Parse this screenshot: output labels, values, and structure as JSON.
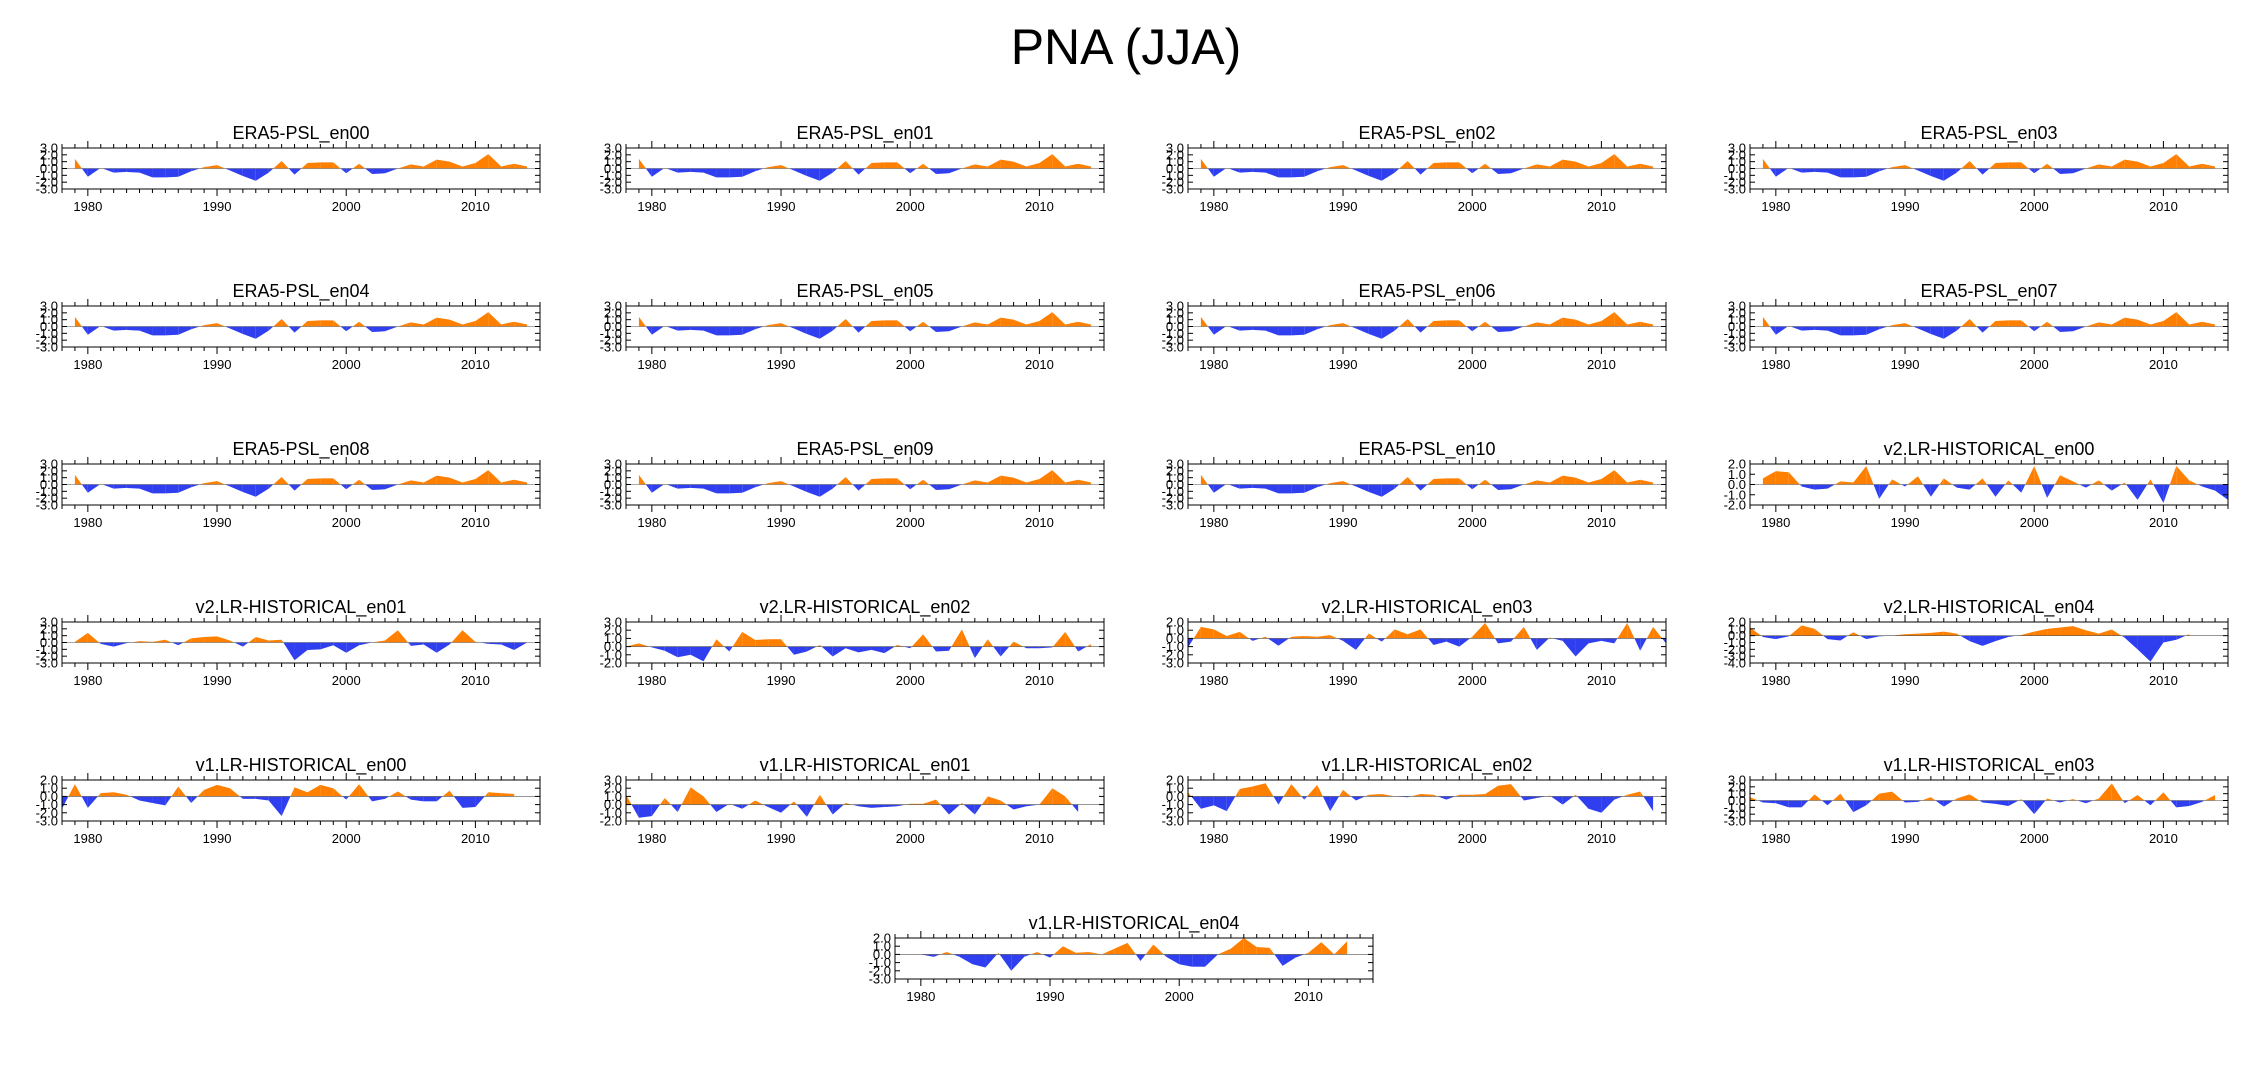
{
  "figure_title": "PNA (JJA)",
  "colors": {
    "positive": "#ff8000",
    "negative": "#2f3ff0",
    "axis": "#000000"
  },
  "chart_data": [
    {
      "type": "area",
      "title": "ERA5-PSL_en00",
      "xlim": [
        1978,
        2015
      ],
      "ylim": [
        -3,
        3
      ],
      "yticks": [
        "3.0",
        "2.0",
        "1.0",
        "0.0",
        "-1.0",
        "-2.0",
        "-3.0"
      ],
      "xticks": [
        1980,
        1990,
        2000,
        2010
      ],
      "x_start": 1979,
      "values": [
        1.4,
        -1.2,
        0.1,
        -0.6,
        -0.5,
        -0.6,
        -1.3,
        -1.3,
        -1.2,
        -0.4,
        0.2,
        0.5,
        -0.3,
        -1.1,
        -1.8,
        -0.6,
        1.1,
        -0.9,
        0.8,
        0.9,
        0.9,
        -0.7,
        0.7,
        -0.8,
        -0.7,
        0.0,
        0.6,
        0.3,
        1.3,
        1.0,
        0.3,
        0.8,
        2.1,
        0.3,
        0.7,
        0.3
      ]
    },
    {
      "type": "area",
      "title": "ERA5-PSL_en01",
      "xlim": [
        1978,
        2015
      ],
      "ylim": [
        -3,
        3
      ],
      "yticks": [
        "3.0",
        "2.0",
        "1.0",
        "0.0",
        "-1.0",
        "-2.0",
        "-3.0"
      ],
      "xticks": [
        1980,
        1990,
        2000,
        2010
      ],
      "x_start": 1979,
      "values": [
        1.4,
        -1.2,
        0.1,
        -0.6,
        -0.5,
        -0.6,
        -1.3,
        -1.3,
        -1.2,
        -0.4,
        0.2,
        0.5,
        -0.3,
        -1.1,
        -1.8,
        -0.6,
        1.1,
        -0.9,
        0.8,
        0.9,
        0.9,
        -0.7,
        0.7,
        -0.8,
        -0.7,
        0.0,
        0.6,
        0.3,
        1.3,
        1.0,
        0.3,
        0.8,
        2.1,
        0.3,
        0.7,
        0.3
      ]
    },
    {
      "type": "area",
      "title": "ERA5-PSL_en02",
      "xlim": [
        1978,
        2015
      ],
      "ylim": [
        -3,
        3
      ],
      "yticks": [
        "3.0",
        "2.0",
        "1.0",
        "0.0",
        "-1.0",
        "-2.0",
        "-3.0"
      ],
      "xticks": [
        1980,
        1990,
        2000,
        2010
      ],
      "x_start": 1979,
      "values": [
        1.4,
        -1.2,
        0.1,
        -0.6,
        -0.5,
        -0.6,
        -1.3,
        -1.3,
        -1.2,
        -0.4,
        0.2,
        0.5,
        -0.3,
        -1.1,
        -1.8,
        -0.6,
        1.1,
        -0.9,
        0.8,
        0.9,
        0.9,
        -0.7,
        0.7,
        -0.8,
        -0.7,
        0.0,
        0.6,
        0.3,
        1.3,
        1.0,
        0.3,
        0.8,
        2.1,
        0.3,
        0.7,
        0.3
      ]
    },
    {
      "type": "area",
      "title": "ERA5-PSL_en03",
      "xlim": [
        1978,
        2015
      ],
      "ylim": [
        -3,
        3
      ],
      "yticks": [
        "3.0",
        "2.0",
        "1.0",
        "0.0",
        "-1.0",
        "-2.0",
        "-3.0"
      ],
      "xticks": [
        1980,
        1990,
        2000,
        2010
      ],
      "x_start": 1979,
      "values": [
        1.4,
        -1.2,
        0.1,
        -0.6,
        -0.5,
        -0.6,
        -1.3,
        -1.3,
        -1.2,
        -0.4,
        0.2,
        0.5,
        -0.3,
        -1.1,
        -1.8,
        -0.6,
        1.1,
        -0.9,
        0.8,
        0.9,
        0.9,
        -0.7,
        0.7,
        -0.8,
        -0.7,
        0.0,
        0.6,
        0.3,
        1.3,
        1.0,
        0.3,
        0.8,
        2.1,
        0.3,
        0.7,
        0.3
      ]
    },
    {
      "type": "area",
      "title": "ERA5-PSL_en04",
      "xlim": [
        1978,
        2015
      ],
      "ylim": [
        -3,
        3
      ],
      "yticks": [
        "3.0",
        "2.0",
        "1.0",
        "0.0",
        "-1.0",
        "-2.0",
        "-3.0"
      ],
      "xticks": [
        1980,
        1990,
        2000,
        2010
      ],
      "x_start": 1979,
      "values": [
        1.4,
        -1.2,
        0.1,
        -0.6,
        -0.5,
        -0.6,
        -1.3,
        -1.3,
        -1.2,
        -0.4,
        0.2,
        0.5,
        -0.3,
        -1.1,
        -1.8,
        -0.6,
        1.1,
        -0.9,
        0.8,
        0.9,
        0.9,
        -0.7,
        0.7,
        -0.8,
        -0.7,
        0.0,
        0.6,
        0.3,
        1.3,
        1.0,
        0.3,
        0.8,
        2.1,
        0.3,
        0.7,
        0.3
      ]
    },
    {
      "type": "area",
      "title": "ERA5-PSL_en05",
      "xlim": [
        1978,
        2015
      ],
      "ylim": [
        -3,
        3
      ],
      "yticks": [
        "3.0",
        "2.0",
        "1.0",
        "0.0",
        "-1.0",
        "-2.0",
        "-3.0"
      ],
      "xticks": [
        1980,
        1990,
        2000,
        2010
      ],
      "x_start": 1979,
      "values": [
        1.4,
        -1.2,
        0.1,
        -0.6,
        -0.5,
        -0.6,
        -1.3,
        -1.3,
        -1.2,
        -0.4,
        0.2,
        0.5,
        -0.3,
        -1.1,
        -1.8,
        -0.6,
        1.1,
        -0.9,
        0.8,
        0.9,
        0.9,
        -0.7,
        0.7,
        -0.8,
        -0.7,
        0.0,
        0.6,
        0.3,
        1.3,
        1.0,
        0.3,
        0.8,
        2.1,
        0.3,
        0.7,
        0.3
      ]
    },
    {
      "type": "area",
      "title": "ERA5-PSL_en06",
      "xlim": [
        1978,
        2015
      ],
      "ylim": [
        -3,
        3
      ],
      "yticks": [
        "3.0",
        "2.0",
        "1.0",
        "0.0",
        "-1.0",
        "-2.0",
        "-3.0"
      ],
      "xticks": [
        1980,
        1990,
        2000,
        2010
      ],
      "x_start": 1979,
      "values": [
        1.4,
        -1.2,
        0.1,
        -0.6,
        -0.5,
        -0.6,
        -1.3,
        -1.3,
        -1.2,
        -0.4,
        0.2,
        0.5,
        -0.3,
        -1.1,
        -1.8,
        -0.6,
        1.1,
        -0.9,
        0.8,
        0.9,
        0.9,
        -0.7,
        0.7,
        -0.8,
        -0.7,
        0.0,
        0.6,
        0.3,
        1.3,
        1.0,
        0.3,
        0.8,
        2.1,
        0.3,
        0.7,
        0.3
      ]
    },
    {
      "type": "area",
      "title": "ERA5-PSL_en07",
      "xlim": [
        1978,
        2015
      ],
      "ylim": [
        -3,
        3
      ],
      "yticks": [
        "3.0",
        "2.0",
        "1.0",
        "0.0",
        "-1.0",
        "-2.0",
        "-3.0"
      ],
      "xticks": [
        1980,
        1990,
        2000,
        2010
      ],
      "x_start": 1979,
      "values": [
        1.4,
        -1.2,
        0.1,
        -0.6,
        -0.5,
        -0.6,
        -1.3,
        -1.3,
        -1.2,
        -0.4,
        0.2,
        0.5,
        -0.3,
        -1.1,
        -1.8,
        -0.6,
        1.1,
        -0.9,
        0.8,
        0.9,
        0.9,
        -0.7,
        0.7,
        -0.8,
        -0.7,
        0.0,
        0.6,
        0.3,
        1.3,
        1.0,
        0.3,
        0.8,
        2.1,
        0.3,
        0.7,
        0.3
      ]
    },
    {
      "type": "area",
      "title": "ERA5-PSL_en08",
      "xlim": [
        1978,
        2015
      ],
      "ylim": [
        -3,
        3
      ],
      "yticks": [
        "3.0",
        "2.0",
        "1.0",
        "0.0",
        "-1.0",
        "-2.0",
        "-3.0"
      ],
      "xticks": [
        1980,
        1990,
        2000,
        2010
      ],
      "x_start": 1979,
      "values": [
        1.4,
        -1.2,
        0.1,
        -0.6,
        -0.5,
        -0.6,
        -1.3,
        -1.3,
        -1.2,
        -0.4,
        0.2,
        0.5,
        -0.3,
        -1.1,
        -1.8,
        -0.6,
        1.1,
        -0.9,
        0.8,
        0.9,
        0.9,
        -0.7,
        0.7,
        -0.8,
        -0.7,
        0.0,
        0.6,
        0.3,
        1.3,
        1.0,
        0.3,
        0.8,
        2.1,
        0.3,
        0.7,
        0.3
      ]
    },
    {
      "type": "area",
      "title": "ERA5-PSL_en09",
      "xlim": [
        1978,
        2015
      ],
      "ylim": [
        -3,
        3
      ],
      "yticks": [
        "3.0",
        "2.0",
        "1.0",
        "0.0",
        "-1.0",
        "-2.0",
        "-3.0"
      ],
      "xticks": [
        1980,
        1990,
        2000,
        2010
      ],
      "x_start": 1979,
      "values": [
        1.4,
        -1.2,
        0.1,
        -0.6,
        -0.5,
        -0.6,
        -1.3,
        -1.3,
        -1.2,
        -0.4,
        0.2,
        0.5,
        -0.3,
        -1.1,
        -1.8,
        -0.6,
        1.1,
        -0.9,
        0.8,
        0.9,
        0.9,
        -0.7,
        0.7,
        -0.8,
        -0.7,
        0.0,
        0.6,
        0.3,
        1.3,
        1.0,
        0.3,
        0.8,
        2.1,
        0.3,
        0.7,
        0.3
      ]
    },
    {
      "type": "area",
      "title": "ERA5-PSL_en10",
      "xlim": [
        1978,
        2015
      ],
      "ylim": [
        -3,
        3
      ],
      "yticks": [
        "3.0",
        "2.0",
        "1.0",
        "0.0",
        "-1.0",
        "-2.0",
        "-3.0"
      ],
      "xticks": [
        1980,
        1990,
        2000,
        2010
      ],
      "x_start": 1979,
      "values": [
        1.4,
        -1.2,
        0.1,
        -0.6,
        -0.5,
        -0.6,
        -1.3,
        -1.3,
        -1.2,
        -0.4,
        0.2,
        0.5,
        -0.3,
        -1.1,
        -1.8,
        -0.6,
        1.1,
        -0.9,
        0.8,
        0.9,
        0.9,
        -0.7,
        0.7,
        -0.8,
        -0.7,
        0.0,
        0.6,
        0.3,
        1.3,
        1.0,
        0.3,
        0.8,
        2.1,
        0.3,
        0.7,
        0.3
      ]
    },
    {
      "type": "area",
      "title": "v2.LR-HISTORICAL_en00",
      "xlim": [
        1978,
        2015
      ],
      "ylim": [
        -2,
        2
      ],
      "yticks": [
        "2.0",
        "1.0",
        "0.0",
        "-1.0",
        "-2.0"
      ],
      "xticks": [
        1980,
        1990,
        2000,
        2010
      ],
      "x_start": 1979,
      "values": [
        0.6,
        1.3,
        1.2,
        -0.2,
        -0.5,
        -0.4,
        0.3,
        0.2,
        1.8,
        -1.4,
        0.5,
        -0.2,
        0.8,
        -1.2,
        0.6,
        -0.3,
        -0.5,
        0.6,
        -1.2,
        0.4,
        -0.8,
        1.8,
        -1.3,
        0.9,
        0.3,
        -0.3,
        0.4,
        -0.6,
        0.2,
        -1.5,
        0.5,
        -1.8,
        1.8,
        0.4,
        -0.2,
        -0.6,
        -1.5
      ]
    },
    {
      "type": "area",
      "title": "v2.LR-HISTORICAL_en01",
      "xlim": [
        1978,
        2015
      ],
      "ylim": [
        -3,
        3
      ],
      "yticks": [
        "3.0",
        "2.0",
        "1.0",
        "0.0",
        "-1.0",
        "-2.0",
        "-3.0"
      ],
      "xticks": [
        1980,
        1990,
        2000,
        2010
      ],
      "x_start": 1979,
      "values": [
        0.1,
        1.4,
        -0.2,
        -0.6,
        -0.1,
        0.2,
        0.1,
        0.4,
        -0.4,
        0.6,
        0.8,
        0.9,
        0.3,
        -0.6,
        0.8,
        0.3,
        0.4,
        -2.6,
        -1.1,
        -1.0,
        -0.4,
        -1.5,
        -0.4,
        0.0,
        0.3,
        1.8,
        -0.5,
        -0.3,
        -1.5,
        -0.3,
        1.8,
        0.1,
        -0.2,
        -0.3,
        -1.1,
        0.0
      ]
    },
    {
      "type": "area",
      "title": "v2.LR-HISTORICAL_en02",
      "xlim": [
        1978,
        2015
      ],
      "ylim": [
        -2,
        3
      ],
      "yticks": [
        "3.0",
        "2.0",
        "1.0",
        "0.0",
        "-1.0",
        "-2.0"
      ],
      "xticks": [
        1980,
        1990,
        2000,
        2010
      ],
      "x_start": 1978,
      "values": [
        0.0,
        0.4,
        -0.1,
        -0.5,
        -1.3,
        -1.0,
        -1.8,
        0.9,
        -0.6,
        1.8,
        0.8,
        0.9,
        0.9,
        -1.0,
        -0.6,
        0.2,
        -1.2,
        -0.2,
        -0.7,
        -0.4,
        -0.8,
        0.2,
        -0.2,
        1.5,
        -0.6,
        -0.5,
        2.1,
        -1.4,
        0.9,
        -1.2,
        0.6,
        -0.2,
        -0.2,
        -0.1,
        1.8,
        -0.6,
        0.3
      ]
    },
    {
      "type": "area",
      "title": "v2.LR-HISTORICAL_en03",
      "xlim": [
        1978,
        2015
      ],
      "ylim": [
        -3,
        2
      ],
      "yticks": [
        "2.0",
        "1.0",
        "0.0",
        "-1.0",
        "-2.0",
        "-3.0"
      ],
      "xticks": [
        1980,
        1990,
        2000,
        2010
      ],
      "x_start": 1978,
      "values": [
        -1.1,
        1.4,
        1.1,
        0.3,
        0.8,
        -0.3,
        0.2,
        -0.9,
        0.2,
        0.3,
        0.2,
        0.4,
        -0.3,
        -1.4,
        0.6,
        -0.4,
        1.1,
        0.5,
        1.1,
        -0.8,
        -0.4,
        -1.0,
        0.2,
        1.9,
        -0.6,
        -0.4,
        1.4,
        -1.4,
        0.1,
        -0.3,
        -2.2,
        -0.6,
        -0.3,
        -0.6,
        1.9,
        -1.5,
        1.4,
        -0.6
      ]
    },
    {
      "type": "area",
      "title": "v2.LR-HISTORICAL_en04",
      "xlim": [
        1978,
        2015
      ],
      "ylim": [
        -4,
        2
      ],
      "yticks": [
        "2.0",
        "1.0",
        "0.0",
        "-1.0",
        "-2.0",
        "-3.0",
        "-4.0"
      ],
      "xticks": [
        1980,
        1990,
        2000,
        2010
      ],
      "x_start": 1978,
      "values": [
        1.2,
        -0.2,
        -0.5,
        -0.1,
        1.5,
        1.0,
        -0.5,
        -0.7,
        0.5,
        -0.5,
        -0.1,
        0.0,
        0.2,
        0.3,
        0.4,
        0.6,
        0.3,
        -0.8,
        -1.5,
        -0.8,
        -0.2,
        0.1,
        0.6,
        1.0,
        1.2,
        1.4,
        0.8,
        0.3,
        0.9,
        -0.3,
        -2.0,
        -3.8,
        -1.0,
        -0.6,
        0.2
      ]
    },
    {
      "type": "area",
      "title": "v1.LR-HISTORICAL_en00",
      "xlim": [
        1978,
        2015
      ],
      "ylim": [
        -3,
        2
      ],
      "yticks": [
        "2.0",
        "1.0",
        "0.0",
        "-1.0",
        "-2.0",
        "-3.0"
      ],
      "xticks": [
        1980,
        1990,
        2000,
        2010
      ],
      "x_start": 1978,
      "values": [
        -1.5,
        1.5,
        -1.4,
        0.4,
        0.5,
        0.2,
        -0.5,
        -0.8,
        -1.1,
        1.2,
        -0.8,
        0.8,
        1.4,
        1.0,
        -0.3,
        -0.3,
        -0.5,
        -2.4,
        1.1,
        0.5,
        1.4,
        1.0,
        -0.4,
        1.5,
        -0.6,
        -0.3,
        0.6,
        -0.4,
        -0.6,
        -0.6,
        0.7,
        -1.4,
        -1.3,
        0.5,
        0.4,
        0.3
      ]
    },
    {
      "type": "area",
      "title": "v1.LR-HISTORICAL_en01",
      "xlim": [
        1978,
        2015
      ],
      "ylim": [
        -2,
        3
      ],
      "yticks": [
        "3.0",
        "2.0",
        "1.0",
        "0.0",
        "-1.0",
        "-2.0"
      ],
      "xticks": [
        1980,
        1990,
        2000,
        2010
      ],
      "x_start": 1978,
      "values": [
        1.2,
        -1.6,
        -1.4,
        0.8,
        -0.9,
        2.1,
        1.0,
        -0.9,
        0.1,
        -0.5,
        0.5,
        -0.3,
        -1.0,
        0.4,
        -1.5,
        1.2,
        -1.2,
        0.2,
        -0.2,
        -0.4,
        -0.3,
        -0.2,
        0.1,
        0.1,
        0.6,
        -1.2,
        0.2,
        -1.2,
        1.0,
        0.5,
        -0.6,
        -0.2,
        0.0,
        2.0,
        1.0,
        -0.9
      ]
    },
    {
      "type": "area",
      "title": "v1.LR-HISTORICAL_en02",
      "xlim": [
        1978,
        2015
      ],
      "ylim": [
        -3,
        2
      ],
      "yticks": [
        "2.0",
        "1.0",
        "0.0",
        "-1.0",
        "-2.0",
        "-3.0"
      ],
      "xticks": [
        1980,
        1990,
        2000,
        2010
      ],
      "x_start": 1978,
      "values": [
        0.5,
        -1.5,
        -1.1,
        -1.8,
        0.9,
        1.2,
        1.6,
        -1.0,
        1.5,
        -0.4,
        1.4,
        -1.8,
        0.8,
        -0.5,
        0.2,
        0.3,
        0.0,
        -0.1,
        0.3,
        0.2,
        -0.4,
        0.2,
        0.2,
        0.3,
        1.3,
        1.5,
        -0.5,
        -0.2,
        0.1,
        -1.0,
        0.2,
        -1.5,
        -2.0,
        -0.4,
        0.2,
        0.6,
        -1.8
      ]
    },
    {
      "type": "area",
      "title": "v1.LR-HISTORICAL_en03",
      "xlim": [
        1978,
        2015
      ],
      "ylim": [
        -3,
        3
      ],
      "yticks": [
        "3.0",
        "2.0",
        "1.0",
        "0.0",
        "-1.0",
        "-2.0",
        "-3.0"
      ],
      "xticks": [
        1980,
        1990,
        2000,
        2010
      ],
      "x_start": 1978,
      "values": [
        0.5,
        -0.3,
        -0.4,
        -1.0,
        -1.0,
        0.9,
        -0.7,
        1.0,
        -1.7,
        -0.7,
        1.0,
        1.3,
        -0.3,
        -0.2,
        0.5,
        -0.9,
        0.3,
        0.9,
        -0.3,
        -0.5,
        -0.8,
        0.2,
        -2.0,
        0.3,
        -0.3,
        0.2,
        -0.4,
        0.3,
        2.5,
        -0.4,
        0.8,
        -0.7,
        1.2,
        -1.0,
        -0.8,
        -0.2,
        0.8
      ]
    },
    {
      "type": "area",
      "title": "v1.LR-HISTORICAL_en04",
      "xlim": [
        1978,
        2015
      ],
      "ylim": [
        -3,
        2
      ],
      "yticks": [
        "2.0",
        "1.0",
        "0.0",
        "-1.0",
        "-2.0",
        "-3.0"
      ],
      "xticks": [
        1980,
        1990,
        2000,
        2010
      ],
      "x_start": 1978,
      "values": [
        0.0,
        0.0,
        0.0,
        -0.3,
        0.3,
        -0.3,
        -1.2,
        -1.6,
        0.2,
        -2.0,
        -0.3,
        0.3,
        -0.4,
        1.0,
        0.2,
        0.3,
        0.0,
        0.7,
        1.4,
        -0.8,
        1.2,
        -0.3,
        -1.2,
        -1.5,
        -1.5,
        0.0,
        0.7,
        2.0,
        0.9,
        0.8,
        -1.4,
        -0.4,
        0.2,
        1.5,
        0.0,
        1.6
      ]
    }
  ]
}
